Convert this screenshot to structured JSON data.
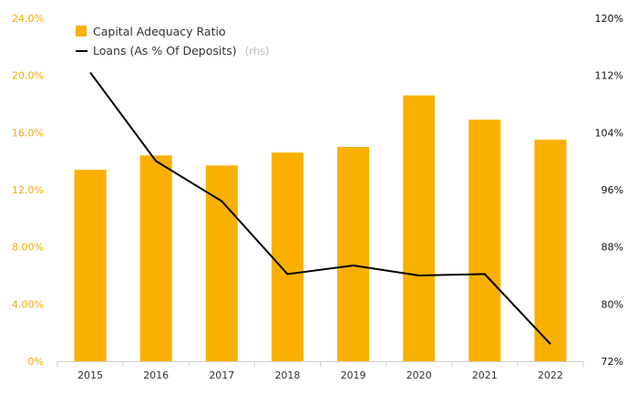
{
  "chart_data": {
    "type": "bar",
    "categories": [
      "2015",
      "2016",
      "2017",
      "2018",
      "2019",
      "2020",
      "2021",
      "2022"
    ],
    "series": [
      {
        "name": "Capital Adequacy Ratio",
        "kind": "bar",
        "axis": "left",
        "color": "#f9b000",
        "values": [
          13.4,
          14.4,
          13.7,
          14.6,
          15.0,
          18.6,
          16.9,
          15.5
        ]
      },
      {
        "name": "Loans (As % Of Deposits)",
        "suffix": "(rhs)",
        "kind": "line",
        "axis": "right",
        "color": "#000000",
        "values": [
          112.4,
          100.0,
          94.4,
          84.2,
          85.4,
          84.0,
          84.2,
          74.4
        ]
      }
    ],
    "left_axis": {
      "ylim": [
        0,
        24
      ],
      "ticks": [
        "0%",
        "4.00%",
        "8.00%",
        "12.0%",
        "16.0%",
        "20.0%",
        "24.0%"
      ],
      "color": "#f5a800"
    },
    "right_axis": {
      "ylim": [
        72,
        120
      ],
      "ticks": [
        "72%",
        "80%",
        "88%",
        "96%",
        "104%",
        "112%",
        "120%"
      ]
    },
    "legend": "top-left",
    "grid": false
  }
}
